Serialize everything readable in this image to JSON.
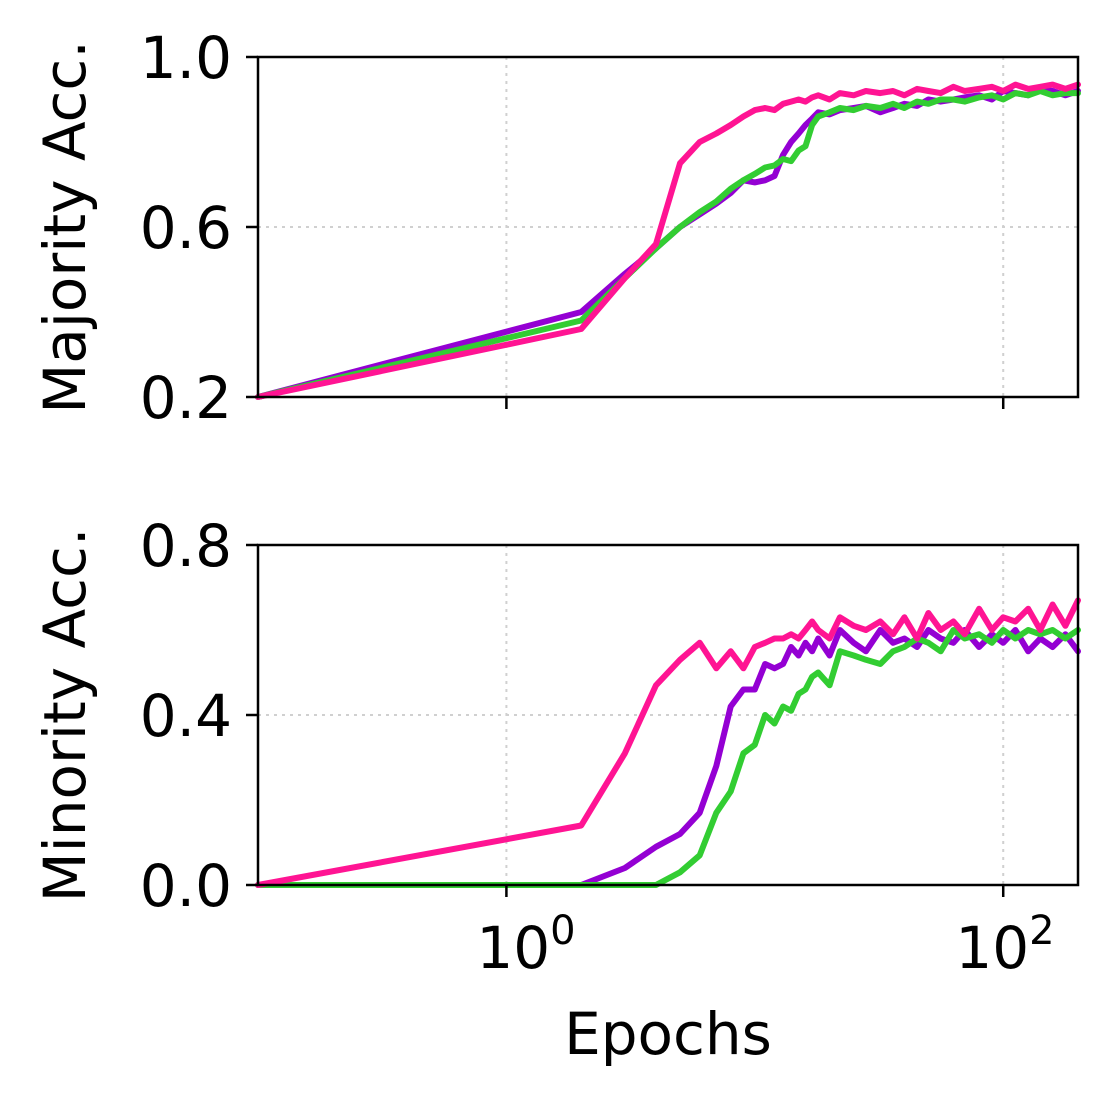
{
  "colors": {
    "series_a": "#9400D3",
    "series_b": "#32CD32",
    "series_c": "#FF1493"
  },
  "chart_data": [
    {
      "type": "line",
      "title": "",
      "xlabel": "",
      "ylabel": "Majority Acc.",
      "xscale": "log",
      "xlim": [
        0.1,
        200
      ],
      "ylim": [
        0.2,
        1.0
      ],
      "yticks": [
        0.2,
        0.6,
        1.0
      ],
      "ytick_labels": [
        "0.2",
        "0.6",
        "1.0"
      ],
      "xticks": [
        1,
        100
      ],
      "grid": true,
      "series": [
        {
          "name": "series_a",
          "x": [
            0.1,
            2,
            3,
            4,
            5,
            6,
            7,
            8,
            9,
            10,
            11,
            12,
            13,
            14,
            15,
            16,
            17,
            18,
            20,
            22,
            25,
            28,
            32,
            36,
            40,
            45,
            50,
            56,
            63,
            70,
            80,
            90,
            100,
            112,
            126,
            141,
            158,
            178,
            200
          ],
          "y": [
            0.2,
            0.4,
            0.49,
            0.55,
            0.6,
            0.63,
            0.655,
            0.68,
            0.71,
            0.705,
            0.71,
            0.72,
            0.77,
            0.8,
            0.82,
            0.84,
            0.855,
            0.87,
            0.865,
            0.875,
            0.88,
            0.885,
            0.87,
            0.88,
            0.89,
            0.885,
            0.9,
            0.895,
            0.9,
            0.905,
            0.91,
            0.9,
            0.92,
            0.915,
            0.91,
            0.925,
            0.92,
            0.91,
            0.92
          ]
        },
        {
          "name": "series_b",
          "x": [
            0.1,
            2,
            3,
            4,
            5,
            6,
            7,
            8,
            9,
            10,
            11,
            12,
            13,
            14,
            15,
            16,
            17,
            18,
            20,
            22,
            25,
            28,
            32,
            36,
            40,
            45,
            50,
            56,
            63,
            70,
            80,
            90,
            100,
            112,
            126,
            141,
            158,
            178,
            200
          ],
          "y": [
            0.2,
            0.38,
            0.48,
            0.55,
            0.6,
            0.635,
            0.66,
            0.69,
            0.71,
            0.725,
            0.74,
            0.745,
            0.76,
            0.755,
            0.78,
            0.79,
            0.84,
            0.86,
            0.87,
            0.88,
            0.875,
            0.885,
            0.88,
            0.89,
            0.88,
            0.895,
            0.89,
            0.9,
            0.9,
            0.895,
            0.905,
            0.91,
            0.9,
            0.915,
            0.91,
            0.92,
            0.91,
            0.915,
            0.915
          ]
        },
        {
          "name": "series_c",
          "x": [
            0.1,
            2,
            3,
            4,
            5,
            6,
            7,
            8,
            9,
            10,
            11,
            12,
            13,
            14,
            15,
            16,
            17,
            18,
            20,
            22,
            25,
            28,
            32,
            36,
            40,
            45,
            50,
            56,
            63,
            70,
            80,
            90,
            100,
            112,
            126,
            141,
            158,
            178,
            200
          ],
          "y": [
            0.2,
            0.36,
            0.48,
            0.56,
            0.75,
            0.8,
            0.82,
            0.84,
            0.86,
            0.875,
            0.88,
            0.875,
            0.89,
            0.895,
            0.9,
            0.895,
            0.905,
            0.91,
            0.9,
            0.915,
            0.91,
            0.92,
            0.915,
            0.92,
            0.91,
            0.925,
            0.92,
            0.915,
            0.93,
            0.92,
            0.925,
            0.93,
            0.92,
            0.935,
            0.925,
            0.93,
            0.935,
            0.925,
            0.935
          ]
        }
      ]
    },
    {
      "type": "line",
      "title": "",
      "xlabel": "Epochs",
      "ylabel": "Minority Acc.",
      "xscale": "log",
      "xlim": [
        0.1,
        200
      ],
      "ylim": [
        0.0,
        0.8
      ],
      "yticks": [
        0.0,
        0.4,
        0.8
      ],
      "ytick_labels": [
        "0.0",
        "0.4",
        "0.8"
      ],
      "xticks": [
        1,
        100
      ],
      "xtick_labels": [
        {
          "base": "10",
          "exp": "0"
        },
        {
          "base": "10",
          "exp": "2"
        }
      ],
      "grid": true,
      "series": [
        {
          "name": "series_a",
          "x": [
            0.1,
            2,
            3,
            4,
            5,
            6,
            7,
            8,
            9,
            10,
            11,
            12,
            13,
            14,
            15,
            16,
            17,
            18,
            20,
            22,
            25,
            28,
            32,
            36,
            40,
            45,
            50,
            56,
            63,
            70,
            80,
            90,
            100,
            112,
            126,
            141,
            158,
            178,
            200
          ],
          "y": [
            0.0,
            0.0,
            0.04,
            0.09,
            0.12,
            0.17,
            0.28,
            0.42,
            0.46,
            0.46,
            0.52,
            0.51,
            0.52,
            0.56,
            0.54,
            0.57,
            0.55,
            0.58,
            0.54,
            0.6,
            0.57,
            0.55,
            0.6,
            0.57,
            0.58,
            0.56,
            0.6,
            0.58,
            0.57,
            0.6,
            0.56,
            0.59,
            0.57,
            0.6,
            0.55,
            0.58,
            0.56,
            0.59,
            0.55
          ]
        },
        {
          "name": "series_b",
          "x": [
            0.1,
            2,
            3,
            4,
            5,
            6,
            7,
            8,
            9,
            10,
            11,
            12,
            13,
            14,
            15,
            16,
            17,
            18,
            20,
            22,
            25,
            28,
            32,
            36,
            40,
            45,
            50,
            56,
            63,
            70,
            80,
            90,
            100,
            112,
            126,
            141,
            158,
            178,
            200
          ],
          "y": [
            0.0,
            0.0,
            0.0,
            0.0,
            0.03,
            0.07,
            0.17,
            0.22,
            0.31,
            0.33,
            0.4,
            0.38,
            0.42,
            0.41,
            0.45,
            0.46,
            0.49,
            0.5,
            0.47,
            0.55,
            0.54,
            0.53,
            0.52,
            0.55,
            0.56,
            0.58,
            0.57,
            0.55,
            0.6,
            0.58,
            0.59,
            0.57,
            0.6,
            0.58,
            0.6,
            0.59,
            0.6,
            0.58,
            0.6
          ]
        },
        {
          "name": "series_c",
          "x": [
            0.1,
            2,
            3,
            4,
            5,
            6,
            7,
            8,
            9,
            10,
            11,
            12,
            13,
            14,
            15,
            16,
            17,
            18,
            20,
            22,
            25,
            28,
            32,
            36,
            40,
            45,
            50,
            56,
            63,
            70,
            80,
            90,
            100,
            112,
            126,
            141,
            158,
            178,
            200
          ],
          "y": [
            0.0,
            0.14,
            0.31,
            0.47,
            0.53,
            0.57,
            0.51,
            0.55,
            0.51,
            0.56,
            0.57,
            0.58,
            0.58,
            0.59,
            0.58,
            0.6,
            0.62,
            0.6,
            0.58,
            0.63,
            0.61,
            0.6,
            0.62,
            0.59,
            0.63,
            0.58,
            0.64,
            0.6,
            0.62,
            0.59,
            0.65,
            0.6,
            0.63,
            0.62,
            0.65,
            0.6,
            0.66,
            0.61,
            0.67
          ]
        }
      ]
    }
  ]
}
